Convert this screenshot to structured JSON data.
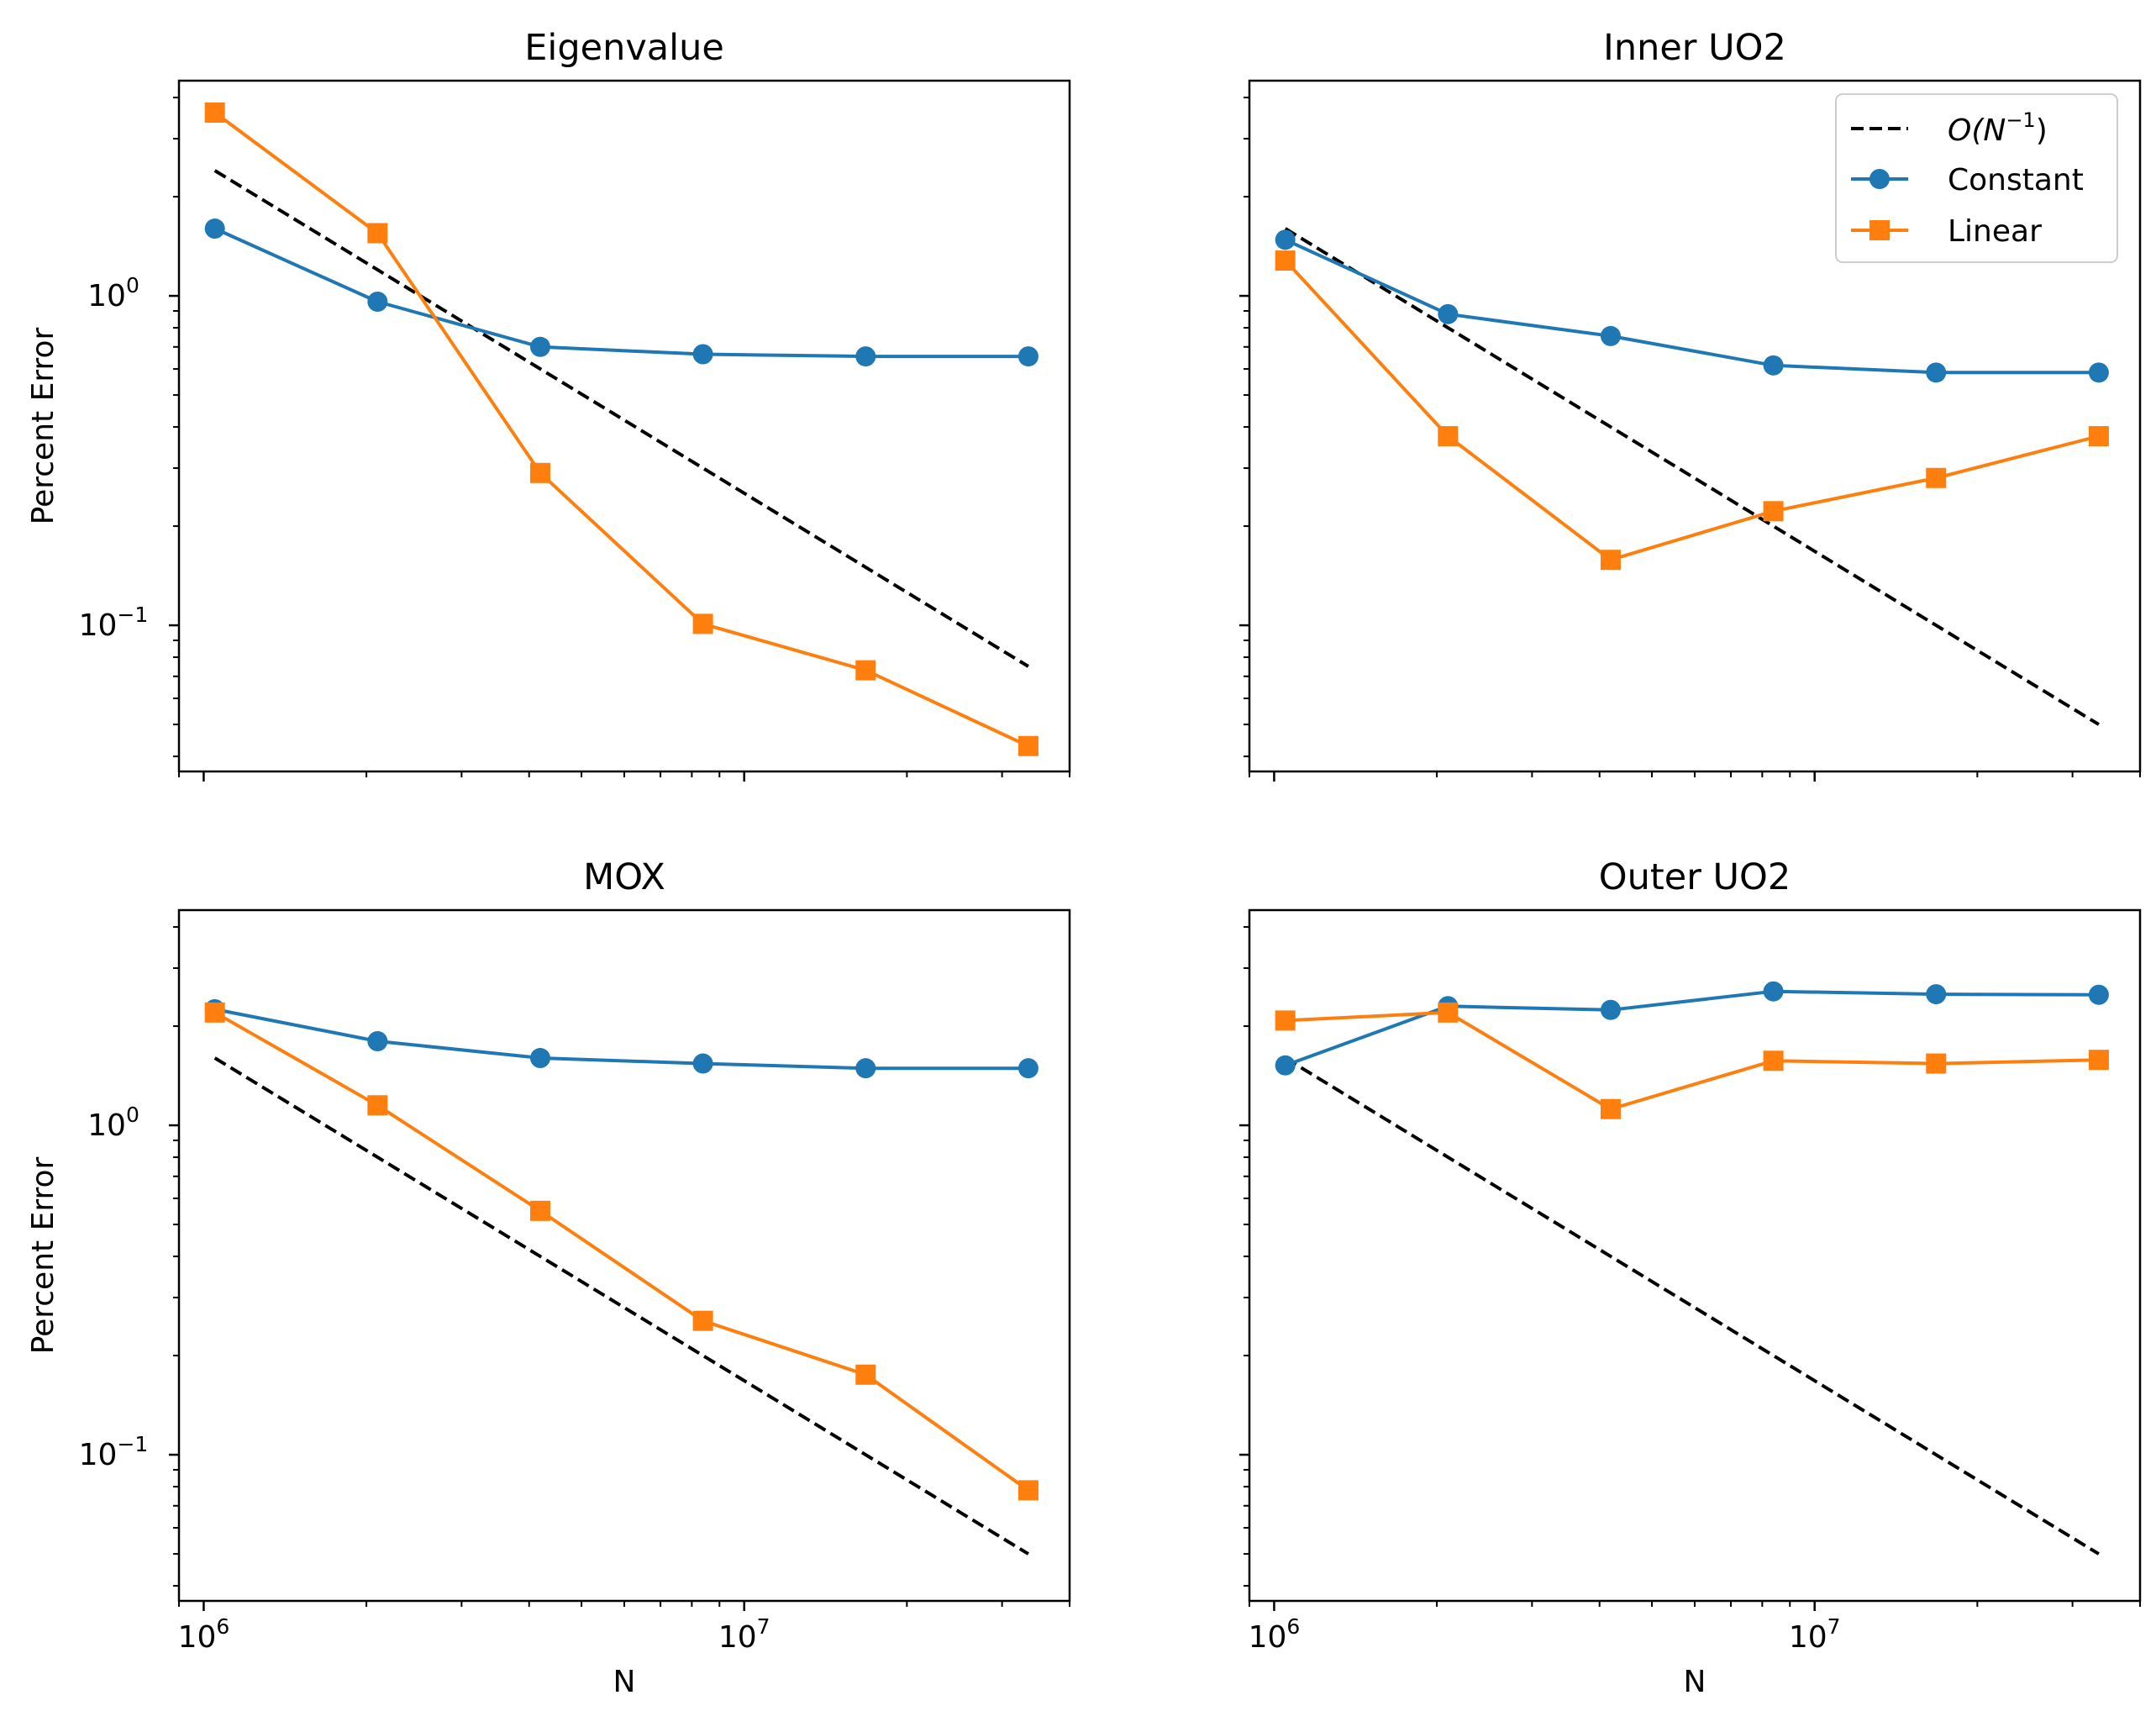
{
  "figure": {
    "x_label": "N",
    "y_label": "Percent Error",
    "colors": {
      "reference": "#000000",
      "constant": "#1f77b4",
      "linear": "#ff7f0e"
    },
    "legend": {
      "placement": "top-right of Inner UO2 panel",
      "entries": [
        {
          "label_prefix": "O(N",
          "label_exp": "−1",
          "label_suffix": ")",
          "style": "dashed",
          "color": "#000000"
        },
        {
          "label": "Constant",
          "marker": "circle",
          "color": "#1f77b4"
        },
        {
          "label": "Linear",
          "marker": "square",
          "color": "#ff7f0e"
        }
      ]
    }
  },
  "chart_data": [
    {
      "title": "Eigenvalue",
      "type": "line",
      "xscale": "log",
      "yscale": "log",
      "xlim": [
        900000,
        40000000
      ],
      "ylim": [
        0.036,
        4.5
      ],
      "ylabel": "Percent Error",
      "xlabel": "",
      "x": [
        1048576,
        2097152,
        4194304,
        8388608,
        16777216,
        33554432
      ],
      "series": [
        {
          "name": "O(N^-1)",
          "style": "dashed",
          "x": [
            1048576,
            33554432
          ],
          "values": [
            2.4,
            0.075
          ]
        },
        {
          "name": "Constant",
          "marker": "circle",
          "values": [
            1.6,
            0.96,
            0.7,
            0.665,
            0.655,
            0.655
          ]
        },
        {
          "name": "Linear",
          "marker": "square",
          "values": [
            3.6,
            1.55,
            0.29,
            0.101,
            0.073,
            0.043
          ]
        }
      ]
    },
    {
      "title": "Inner UO2",
      "type": "line",
      "xscale": "log",
      "yscale": "log",
      "xlim": [
        900000,
        40000000
      ],
      "ylim": [
        0.036,
        4.5
      ],
      "ylabel": "",
      "xlabel": "",
      "x": [
        1048576,
        2097152,
        4194304,
        8388608,
        16777216,
        33554432
      ],
      "series": [
        {
          "name": "O(N^-1)",
          "style": "dashed",
          "x": [
            1048576,
            33554432
          ],
          "values": [
            1.6,
            0.05
          ]
        },
        {
          "name": "Constant",
          "marker": "circle",
          "values": [
            1.48,
            0.88,
            0.755,
            0.615,
            0.585,
            0.585
          ]
        },
        {
          "name": "Linear",
          "marker": "square",
          "values": [
            1.28,
            0.375,
            0.158,
            0.222,
            0.28,
            0.375
          ]
        }
      ]
    },
    {
      "title": "MOX",
      "type": "line",
      "xscale": "log",
      "yscale": "log",
      "xlim": [
        900000,
        40000000
      ],
      "ylim": [
        0.036,
        4.5
      ],
      "ylabel": "Percent Error",
      "xlabel": "N",
      "x": [
        1048576,
        2097152,
        4194304,
        8388608,
        16777216,
        33554432
      ],
      "series": [
        {
          "name": "O(N^-1)",
          "style": "dashed",
          "x": [
            1048576,
            33554432
          ],
          "values": [
            1.6,
            0.05
          ]
        },
        {
          "name": "Constant",
          "marker": "circle",
          "values": [
            2.25,
            1.8,
            1.6,
            1.54,
            1.49,
            1.49
          ]
        },
        {
          "name": "Linear",
          "marker": "square",
          "values": [
            2.2,
            1.15,
            0.55,
            0.255,
            0.175,
            0.078
          ]
        }
      ]
    },
    {
      "title": "Outer UO2",
      "type": "line",
      "xscale": "log",
      "yscale": "log",
      "xlim": [
        900000,
        40000000
      ],
      "ylim": [
        0.036,
        4.5
      ],
      "ylabel": "",
      "xlabel": "N",
      "x": [
        1048576,
        2097152,
        4194304,
        8388608,
        16777216,
        33554432
      ],
      "series": [
        {
          "name": "O(N^-1)",
          "style": "dashed",
          "x": [
            1048576,
            33554432
          ],
          "values": [
            1.6,
            0.05
          ]
        },
        {
          "name": "Constant",
          "marker": "circle",
          "values": [
            1.52,
            2.3,
            2.24,
            2.55,
            2.5,
            2.49
          ]
        },
        {
          "name": "Linear",
          "marker": "square",
          "values": [
            2.08,
            2.2,
            1.12,
            1.57,
            1.54,
            1.58
          ]
        }
      ]
    }
  ],
  "axis_ticks": {
    "x_major": [
      {
        "value": 1000000,
        "base": "10",
        "exp": "6"
      },
      {
        "value": 10000000,
        "base": "10",
        "exp": "7"
      }
    ],
    "y_major": [
      {
        "value": 1,
        "base": "10",
        "exp": "0"
      },
      {
        "value": 0.1,
        "base": "10",
        "exp": "−1"
      }
    ]
  }
}
